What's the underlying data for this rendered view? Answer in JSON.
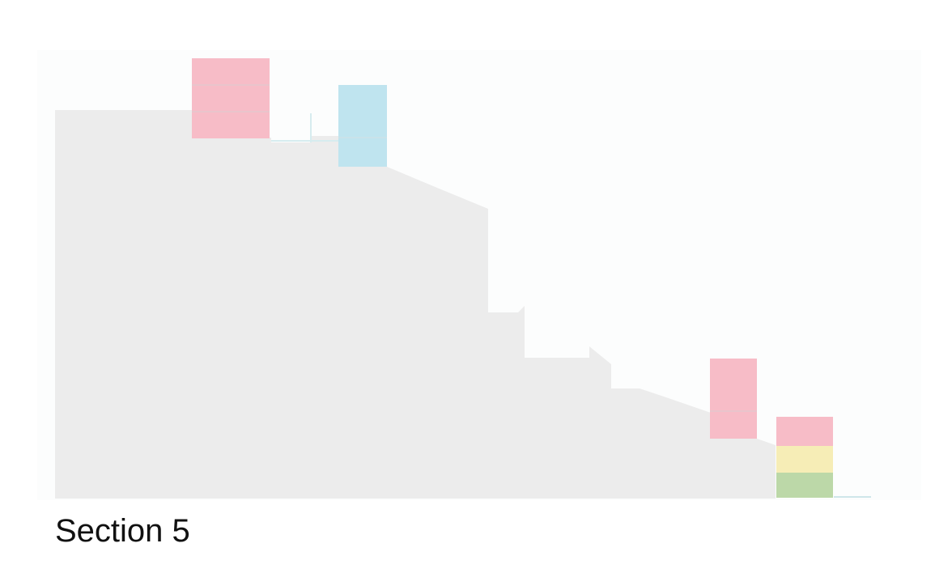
{
  "caption": "Section 5",
  "colors": {
    "page_background": "#ffffff",
    "panel_background": "#fcfdfd",
    "profile_fill": "#ececec",
    "accent_pink": "#f7bcc7",
    "accent_blue": "#bfe4ef",
    "accent_yellow": "#f6edb6",
    "accent_green": "#bcd8a8",
    "band_line": "#e9c4cc"
  },
  "blocks": [
    {
      "id": "pink-block-1",
      "color": "accent_pink",
      "bands": 3
    },
    {
      "id": "blue-block-1",
      "color": "accent_blue",
      "bands": 1
    },
    {
      "id": "pink-block-2",
      "color": "accent_pink",
      "bands": 2
    },
    {
      "id": "stack-block",
      "segments": [
        "accent_pink",
        "accent_yellow",
        "accent_green"
      ]
    }
  ]
}
